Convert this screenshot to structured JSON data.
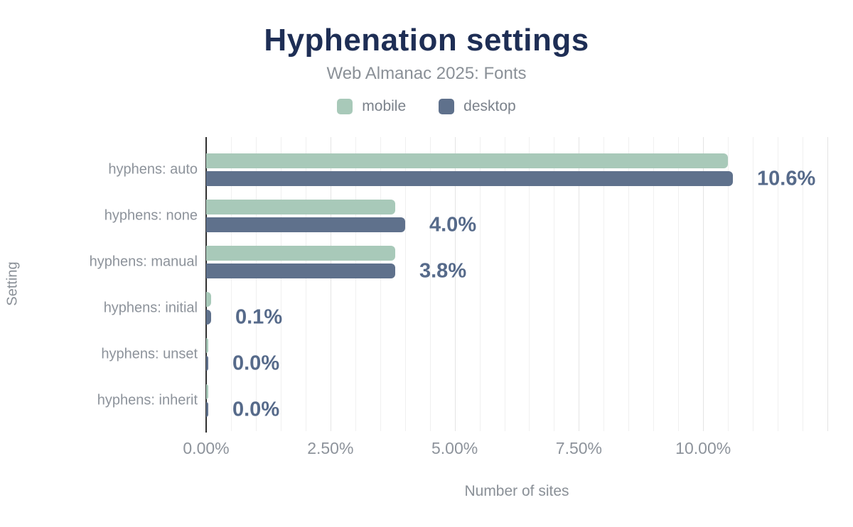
{
  "chart_data": {
    "type": "bar",
    "orientation": "horizontal",
    "title": "Hyphenation settings",
    "subtitle": "Web Almanac 2025: Fonts",
    "xlabel": "Number of sites",
    "ylabel": "Setting",
    "categories": [
      "hyphens: auto",
      "hyphens: none",
      "hyphens: manual",
      "hyphens: initial",
      "hyphens: unset",
      "hyphens: inherit"
    ],
    "series": [
      {
        "name": "mobile",
        "color": "#a8c9b9",
        "values": [
          10.5,
          3.8,
          3.8,
          0.1,
          0.0,
          0.0
        ]
      },
      {
        "name": "desktop",
        "color": "#5f718c",
        "values": [
          10.6,
          4.0,
          3.8,
          0.1,
          0.0,
          0.0
        ]
      }
    ],
    "value_labels": [
      "10.6%",
      "4.0%",
      "3.8%",
      "0.1%",
      "0.0%",
      "0.0%"
    ],
    "x_ticks": [
      {
        "label": "0.00%",
        "value": 0
      },
      {
        "label": "2.50%",
        "value": 2.5
      },
      {
        "label": "5.00%",
        "value": 5
      },
      {
        "label": "7.50%",
        "value": 7.5
      },
      {
        "label": "10.00%",
        "value": 10
      }
    ],
    "xlim": [
      0,
      12.5
    ],
    "grid": {
      "on": true,
      "minor_step": 0.5,
      "major_step": 2.5
    },
    "legend_position": "top"
  },
  "colors": {
    "title": "#1e2e55",
    "subtitle_gray": "#8a9097",
    "label_gray": "#8d939b",
    "legend_text": "#7b828b",
    "value_slate": "#566a8a",
    "axis_line": "#2f2f2f",
    "grid_minor": "#f0f0f0",
    "grid_major": "#e4e4e4",
    "background": "#ffffff"
  }
}
